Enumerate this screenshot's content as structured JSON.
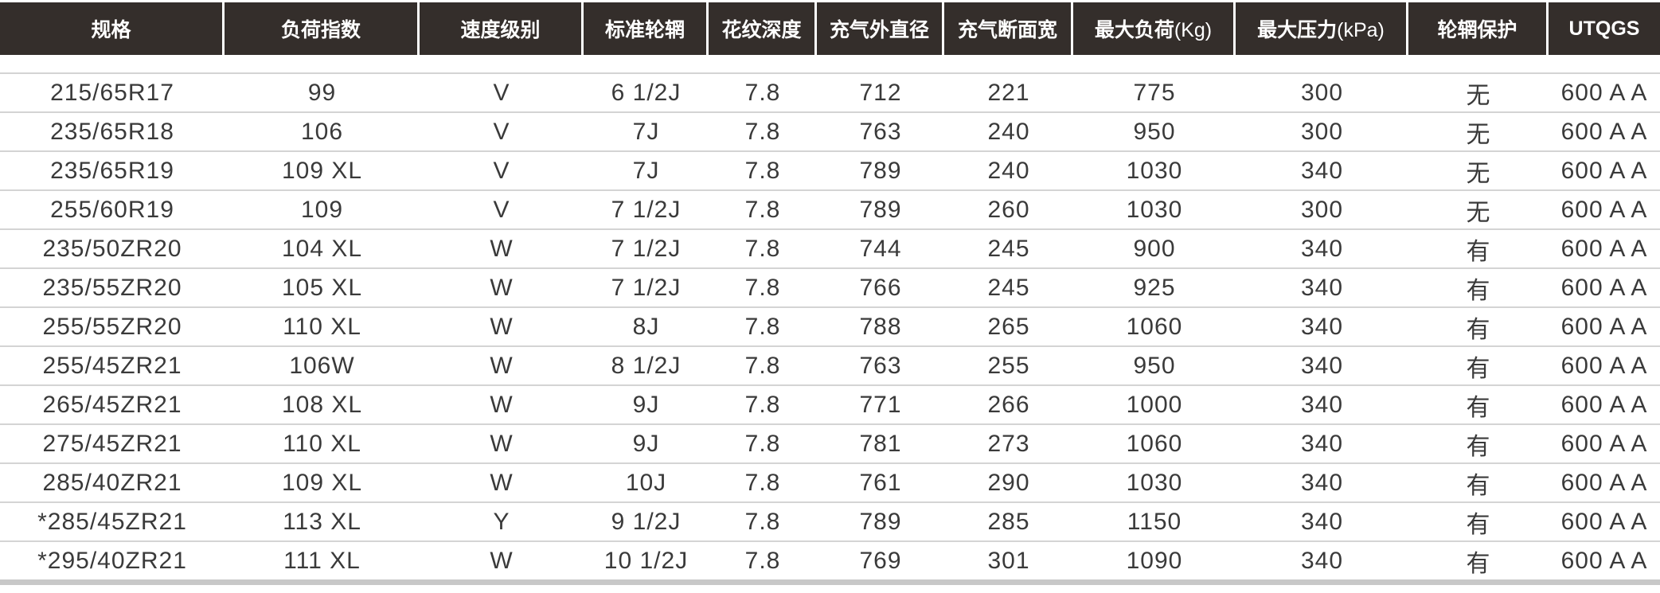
{
  "headers": [
    "规格",
    "负荷指数",
    "速度级别",
    "标准轮辋",
    "花纹深度",
    "充气外直径",
    "充气断面宽",
    "最大负荷",
    "最大压力",
    "轮辋保护",
    "UTQGS"
  ],
  "header_units": {
    "7": "(Kg)",
    "8": "(kPa)"
  },
  "rows": [
    [
      "215/65R17",
      "99",
      "V",
      "6 1/2J",
      "7.8",
      "712",
      "221",
      "775",
      "300",
      "无",
      "600 A A"
    ],
    [
      "235/65R18",
      "106",
      "V",
      "7J",
      "7.8",
      "763",
      "240",
      "950",
      "300",
      "无",
      "600 A A"
    ],
    [
      "235/65R19",
      "109 XL",
      "V",
      "7J",
      "7.8",
      "789",
      "240",
      "1030",
      "340",
      "无",
      "600 A A"
    ],
    [
      "255/60R19",
      "109",
      "V",
      "7 1/2J",
      "7.8",
      "789",
      "260",
      "1030",
      "300",
      "无",
      "600 A A"
    ],
    [
      "235/50ZR20",
      "104 XL",
      "W",
      "7 1/2J",
      "7.8",
      "744",
      "245",
      "900",
      "340",
      "有",
      "600 A A"
    ],
    [
      "235/55ZR20",
      "105 XL",
      "W",
      "7 1/2J",
      "7.8",
      "766",
      "245",
      "925",
      "340",
      "有",
      "600 A A"
    ],
    [
      "255/55ZR20",
      "110 XL",
      "W",
      "8J",
      "7.8",
      "788",
      "265",
      "1060",
      "340",
      "有",
      "600 A A"
    ],
    [
      "255/45ZR21",
      "106W",
      "W",
      "8 1/2J",
      "7.8",
      "763",
      "255",
      "950",
      "340",
      "有",
      "600 A A"
    ],
    [
      "265/45ZR21",
      "108 XL",
      "W",
      "9J",
      "7.8",
      "771",
      "266",
      "1000",
      "340",
      "有",
      "600 A A"
    ],
    [
      "275/45ZR21",
      "110 XL",
      "W",
      "9J",
      "7.8",
      "781",
      "273",
      "1060",
      "340",
      "有",
      "600 A A"
    ],
    [
      "285/40ZR21",
      "109 XL",
      "W",
      "10J",
      "7.8",
      "761",
      "290",
      "1030",
      "340",
      "有",
      "600 A A"
    ],
    [
      "*285/45ZR21",
      "113 XL",
      "Y",
      "9 1/2J",
      "7.8",
      "789",
      "285",
      "1150",
      "340",
      "有",
      "600 A A"
    ],
    [
      "*295/40ZR21",
      "111 XL",
      "W",
      "10 1/2J",
      "7.8",
      "769",
      "301",
      "1090",
      "340",
      "有",
      "600 A A"
    ]
  ],
  "colors": {
    "header_bg": "#342e2b",
    "header_text": "#ffffff",
    "row_text": "#3a3a3a",
    "divider": "#d4d4d4"
  }
}
